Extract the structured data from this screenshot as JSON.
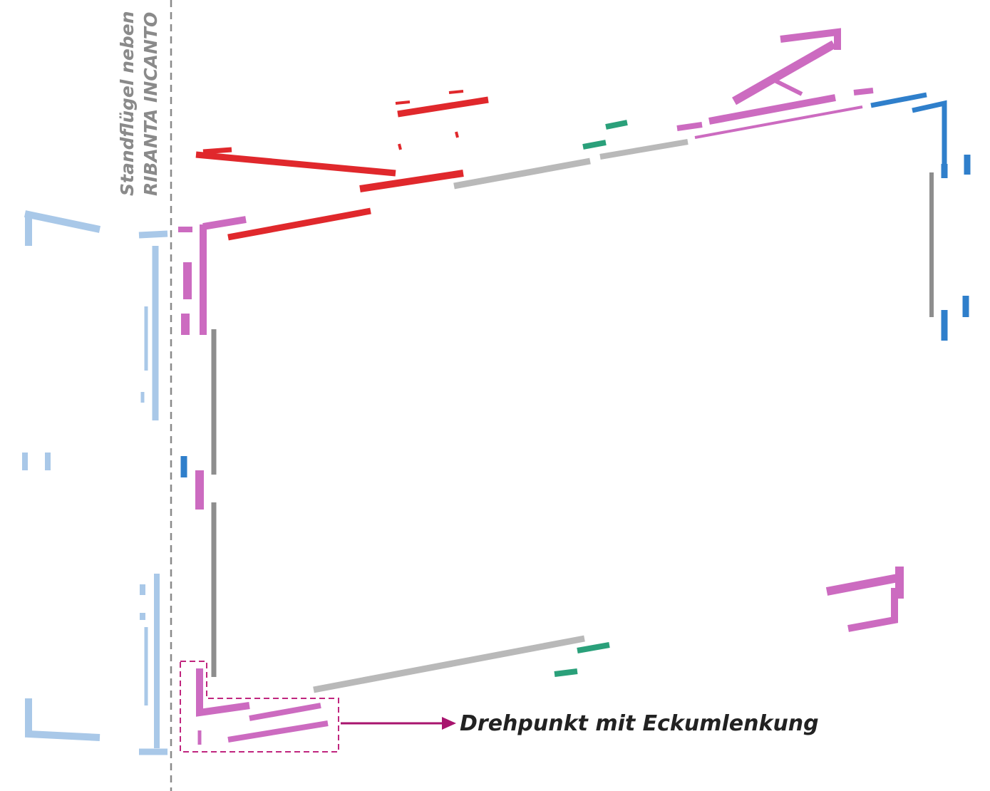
{
  "side_label": {
    "line1": "Standflügel neben",
    "line2": "RIBANTA INCANTO"
  },
  "callout": {
    "label": "Drehpunkt mit Eckumlenkung"
  }
}
